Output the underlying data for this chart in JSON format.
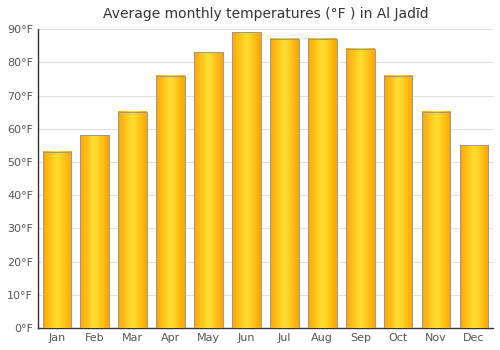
{
  "title": "Average monthly temperatures (°F ) in Al Jadīd",
  "months": [
    "Jan",
    "Feb",
    "Mar",
    "Apr",
    "May",
    "Jun",
    "Jul",
    "Aug",
    "Sep",
    "Oct",
    "Nov",
    "Dec"
  ],
  "values": [
    53,
    58,
    65,
    76,
    83,
    89,
    87,
    87,
    84,
    76,
    65,
    55
  ],
  "bar_color_center": "#FFE033",
  "bar_color_edge": "#FFA500",
  "bar_outline_color": "#999999",
  "ylim": [
    0,
    90
  ],
  "yticks": [
    0,
    10,
    20,
    30,
    40,
    50,
    60,
    70,
    80,
    90
  ],
  "ytick_labels": [
    "0°F",
    "10°F",
    "20°F",
    "30°F",
    "40°F",
    "50°F",
    "60°F",
    "70°F",
    "80°F",
    "90°F"
  ],
  "background_color": "#ffffff",
  "grid_color": "#e0e0e0",
  "title_fontsize": 10,
  "tick_fontsize": 8,
  "bar_width": 0.75
}
